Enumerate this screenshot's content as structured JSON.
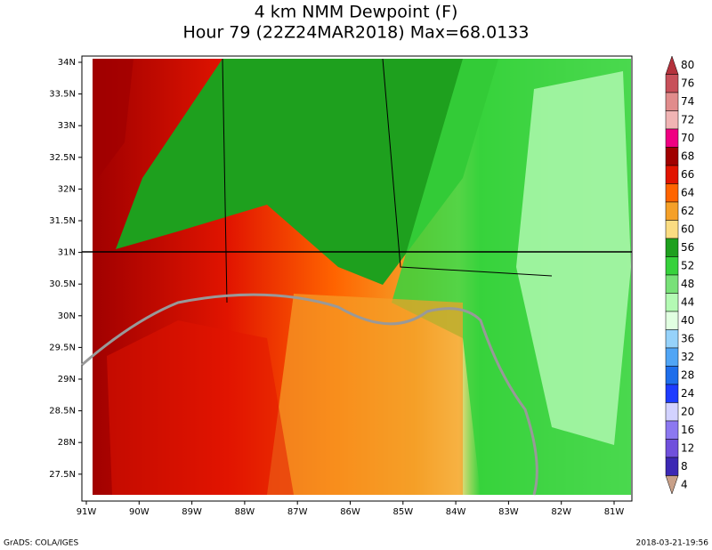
{
  "title": "4 km NMM Dewpoint (F)",
  "subtitle": "Hour 79 (22Z24MAR2018) Max=68.0133",
  "lon_labels": [
    "91W",
    "90W",
    "89W",
    "88W",
    "87W",
    "86W",
    "85W",
    "84W",
    "83W",
    "82W",
    "81W"
  ],
  "lat_labels": [
    "34N",
    "33.5N",
    "33N",
    "32.5N",
    "32N",
    "31.5N",
    "31N",
    "30.5N",
    "30N",
    "29.5N",
    "29N",
    "28.5N",
    "28N",
    "27.5N"
  ],
  "colorbar": {
    "labels": [
      80,
      76,
      74,
      72,
      70,
      68,
      66,
      64,
      62,
      60,
      56,
      52,
      48,
      44,
      40,
      36,
      32,
      28,
      24,
      20,
      16,
      12,
      8,
      4
    ],
    "colors": [
      "#b4323c",
      "#c8505a",
      "#e18c8c",
      "#f0b4b4",
      "#f00082",
      "#a00000",
      "#e11400",
      "#ff6400",
      "#f5a028",
      "#fadc82",
      "#1ea01e",
      "#37d23c",
      "#78e178",
      "#b4fab4",
      "#e1ffe1",
      "#96d2fa",
      "#50a5f5",
      "#1e6eeb",
      "#1e3cff",
      "#d2d2ff",
      "#8c78f0",
      "#7050dc",
      "#3c28b4",
      "#c8a088"
    ]
  },
  "footer": {
    "left": "GrADS: COLA/IGES",
    "right": "2018-03-21-19:56"
  }
}
